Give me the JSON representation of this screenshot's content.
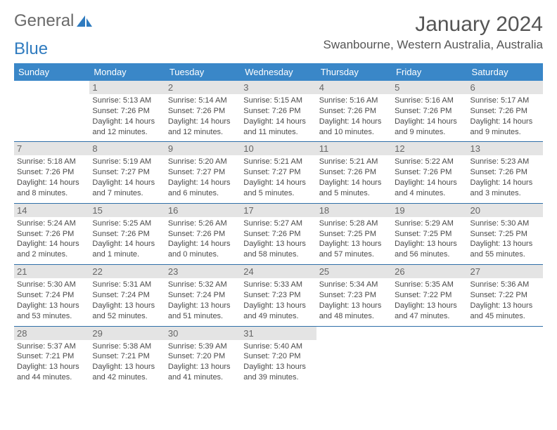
{
  "brand": {
    "word1": "General",
    "word2": "Blue"
  },
  "title": "January 2024",
  "location": "Swanbourne, Western Australia, Australia",
  "colors": {
    "header_bg": "#3a87c8",
    "header_text": "#ffffff",
    "daynum_bg": "#e4e4e4",
    "rule": "#2f6fa8",
    "text": "#4a4a4a",
    "brand_gray": "#6a6a6a",
    "brand_blue": "#2f7bbf"
  },
  "weekdays": [
    "Sunday",
    "Monday",
    "Tuesday",
    "Wednesday",
    "Thursday",
    "Friday",
    "Saturday"
  ],
  "weeks": [
    [
      null,
      {
        "n": "1",
        "sr": "5:13 AM",
        "ss": "7:26 PM",
        "dl": "14 hours and 12 minutes."
      },
      {
        "n": "2",
        "sr": "5:14 AM",
        "ss": "7:26 PM",
        "dl": "14 hours and 12 minutes."
      },
      {
        "n": "3",
        "sr": "5:15 AM",
        "ss": "7:26 PM",
        "dl": "14 hours and 11 minutes."
      },
      {
        "n": "4",
        "sr": "5:16 AM",
        "ss": "7:26 PM",
        "dl": "14 hours and 10 minutes."
      },
      {
        "n": "5",
        "sr": "5:16 AM",
        "ss": "7:26 PM",
        "dl": "14 hours and 9 minutes."
      },
      {
        "n": "6",
        "sr": "5:17 AM",
        "ss": "7:26 PM",
        "dl": "14 hours and 9 minutes."
      }
    ],
    [
      {
        "n": "7",
        "sr": "5:18 AM",
        "ss": "7:26 PM",
        "dl": "14 hours and 8 minutes."
      },
      {
        "n": "8",
        "sr": "5:19 AM",
        "ss": "7:27 PM",
        "dl": "14 hours and 7 minutes."
      },
      {
        "n": "9",
        "sr": "5:20 AM",
        "ss": "7:27 PM",
        "dl": "14 hours and 6 minutes."
      },
      {
        "n": "10",
        "sr": "5:21 AM",
        "ss": "7:27 PM",
        "dl": "14 hours and 5 minutes."
      },
      {
        "n": "11",
        "sr": "5:21 AM",
        "ss": "7:26 PM",
        "dl": "14 hours and 5 minutes."
      },
      {
        "n": "12",
        "sr": "5:22 AM",
        "ss": "7:26 PM",
        "dl": "14 hours and 4 minutes."
      },
      {
        "n": "13",
        "sr": "5:23 AM",
        "ss": "7:26 PM",
        "dl": "14 hours and 3 minutes."
      }
    ],
    [
      {
        "n": "14",
        "sr": "5:24 AM",
        "ss": "7:26 PM",
        "dl": "14 hours and 2 minutes."
      },
      {
        "n": "15",
        "sr": "5:25 AM",
        "ss": "7:26 PM",
        "dl": "14 hours and 1 minute."
      },
      {
        "n": "16",
        "sr": "5:26 AM",
        "ss": "7:26 PM",
        "dl": "14 hours and 0 minutes."
      },
      {
        "n": "17",
        "sr": "5:27 AM",
        "ss": "7:26 PM",
        "dl": "13 hours and 58 minutes."
      },
      {
        "n": "18",
        "sr": "5:28 AM",
        "ss": "7:25 PM",
        "dl": "13 hours and 57 minutes."
      },
      {
        "n": "19",
        "sr": "5:29 AM",
        "ss": "7:25 PM",
        "dl": "13 hours and 56 minutes."
      },
      {
        "n": "20",
        "sr": "5:30 AM",
        "ss": "7:25 PM",
        "dl": "13 hours and 55 minutes."
      }
    ],
    [
      {
        "n": "21",
        "sr": "5:30 AM",
        "ss": "7:24 PM",
        "dl": "13 hours and 53 minutes."
      },
      {
        "n": "22",
        "sr": "5:31 AM",
        "ss": "7:24 PM",
        "dl": "13 hours and 52 minutes."
      },
      {
        "n": "23",
        "sr": "5:32 AM",
        "ss": "7:24 PM",
        "dl": "13 hours and 51 minutes."
      },
      {
        "n": "24",
        "sr": "5:33 AM",
        "ss": "7:23 PM",
        "dl": "13 hours and 49 minutes."
      },
      {
        "n": "25",
        "sr": "5:34 AM",
        "ss": "7:23 PM",
        "dl": "13 hours and 48 minutes."
      },
      {
        "n": "26",
        "sr": "5:35 AM",
        "ss": "7:22 PM",
        "dl": "13 hours and 47 minutes."
      },
      {
        "n": "27",
        "sr": "5:36 AM",
        "ss": "7:22 PM",
        "dl": "13 hours and 45 minutes."
      }
    ],
    [
      {
        "n": "28",
        "sr": "5:37 AM",
        "ss": "7:21 PM",
        "dl": "13 hours and 44 minutes."
      },
      {
        "n": "29",
        "sr": "5:38 AM",
        "ss": "7:21 PM",
        "dl": "13 hours and 42 minutes."
      },
      {
        "n": "30",
        "sr": "5:39 AM",
        "ss": "7:20 PM",
        "dl": "13 hours and 41 minutes."
      },
      {
        "n": "31",
        "sr": "5:40 AM",
        "ss": "7:20 PM",
        "dl": "13 hours and 39 minutes."
      },
      null,
      null,
      null
    ]
  ],
  "labels": {
    "sunrise": "Sunrise: ",
    "sunset": "Sunset: ",
    "daylight": "Daylight: "
  }
}
